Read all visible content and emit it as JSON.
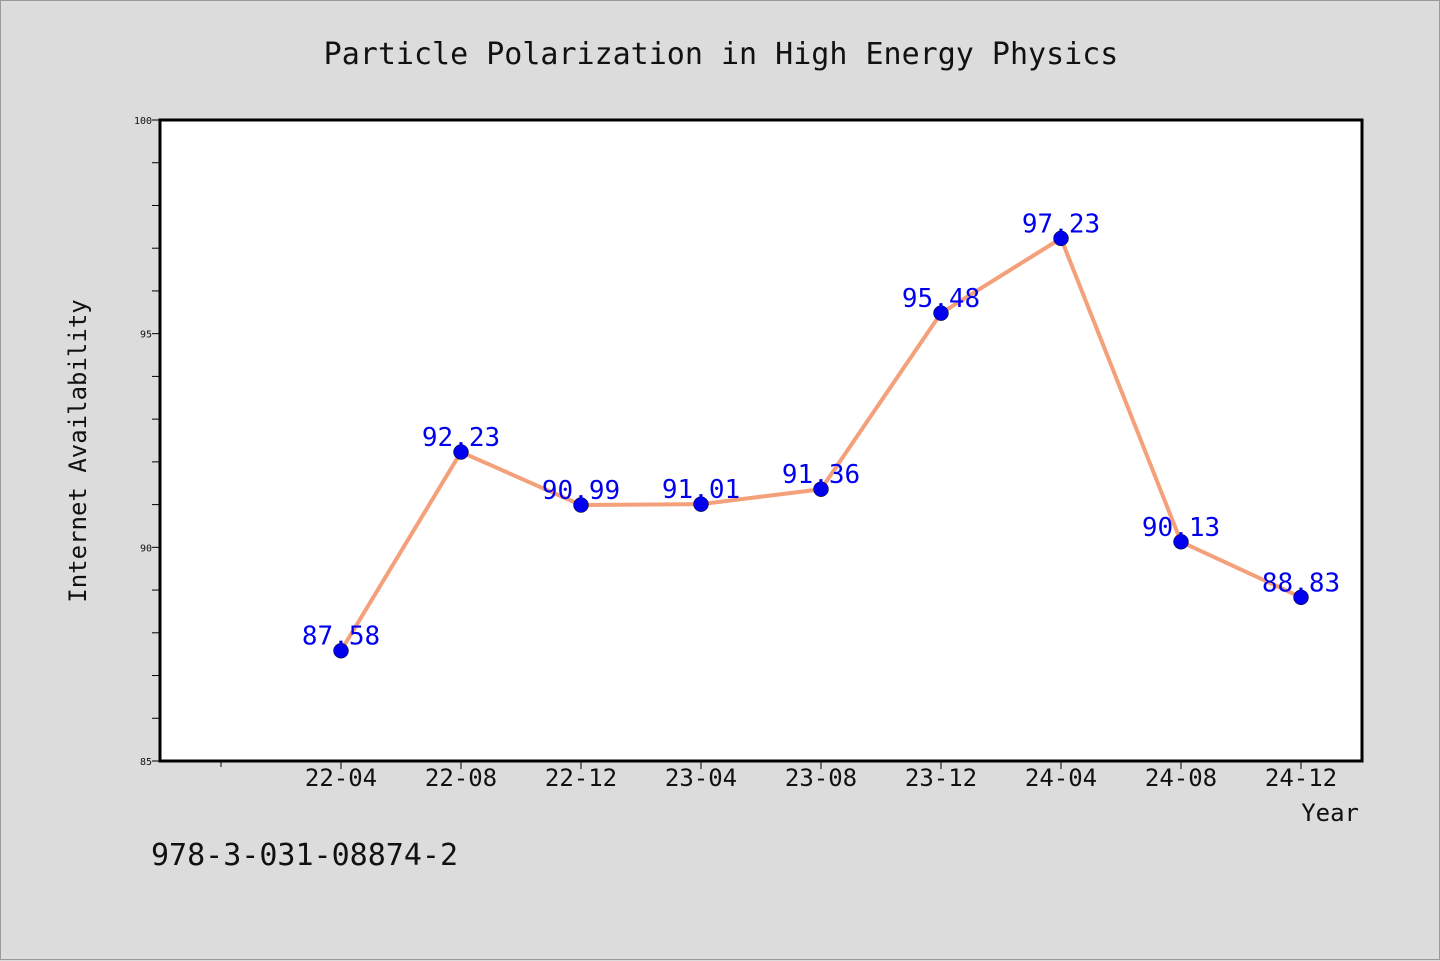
{
  "chart_data": {
    "type": "line",
    "title": "Particle Polarization in High Energy Physics",
    "xlabel": "Year",
    "ylabel": "Internet Availability",
    "categories": [
      "22-04",
      "22-08",
      "22-12",
      "23-04",
      "23-08",
      "23-12",
      "24-04",
      "24-08",
      "24-12"
    ],
    "series": [
      {
        "values": [
          87.58,
          92.23,
          90.99,
          91.01,
          91.36,
          95.48,
          97.23,
          90.13,
          88.83
        ],
        "line_color": "#f4a07a",
        "marker_color": "#0000ee",
        "label_color": "#0000ee"
      }
    ],
    "data_labels": [
      "87.58",
      "92.23",
      "90.99",
      "91.01",
      "91.36",
      "95.48",
      "97.23",
      "90.13",
      "88.83"
    ],
    "ylim": [
      85,
      100
    ],
    "yticks": [
      "85",
      "90",
      "95",
      "100"
    ],
    "grid": false,
    "legend": "none"
  },
  "footnote": "978-3-031-08874-2"
}
